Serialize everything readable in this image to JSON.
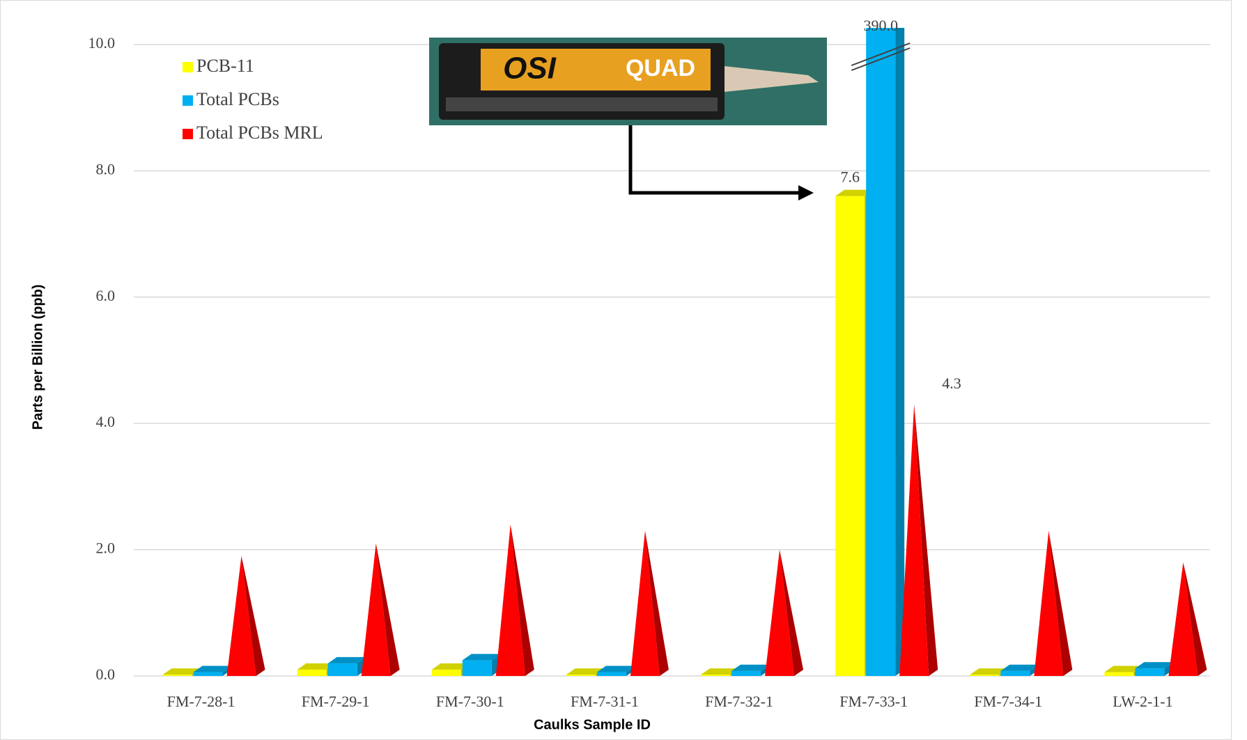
{
  "chart_data": {
    "type": "bar3d",
    "x_label": "Caulks Sample ID",
    "y_label": "Parts per Billion (ppb)",
    "categories": [
      "FM-7-28-1",
      "FM-7-29-1",
      "FM-7-30-1",
      "FM-7-31-1",
      "FM-7-32-1",
      "FM-7-33-1",
      "FM-7-34-1",
      "LW-2-1-1"
    ],
    "series": [
      {
        "name": "PCB-11",
        "color": "#ffff00",
        "shape": "bar",
        "values": [
          0.02,
          0.1,
          0.1,
          0.02,
          0.02,
          7.6,
          0.02,
          0.06
        ],
        "value_labels": [
          null,
          null,
          null,
          null,
          null,
          "7.6",
          null,
          null
        ]
      },
      {
        "name": "Total PCBs",
        "color": "#00b0f0",
        "shape": "bar",
        "values": [
          0.06,
          0.2,
          0.25,
          0.06,
          0.08,
          390,
          0.08,
          0.12
        ],
        "value_labels": [
          null,
          null,
          null,
          null,
          null,
          "390.0",
          null,
          null
        ]
      },
      {
        "name": "Total PCBs MRL",
        "color": "#ff0000",
        "shape": "cone",
        "values": [
          1.9,
          2.1,
          2.4,
          2.3,
          2.0,
          4.3,
          2.3,
          1.8
        ],
        "value_labels": [
          null,
          null,
          null,
          null,
          null,
          "4.3",
          null,
          null
        ]
      }
    ],
    "ylim": [
      0,
      10
    ],
    "yticks": [
      {
        "value": 0,
        "label": "0.0"
      },
      {
        "value": 2,
        "label": "2.0"
      },
      {
        "value": 4,
        "label": "4.0"
      },
      {
        "value": 6,
        "label": "6.0"
      },
      {
        "value": 8,
        "label": "8.0"
      },
      {
        "value": 10,
        "label": "10.0"
      }
    ],
    "grid": true,
    "legend": "top-left",
    "image_text": [
      "OSI",
      "QUAD"
    ]
  }
}
